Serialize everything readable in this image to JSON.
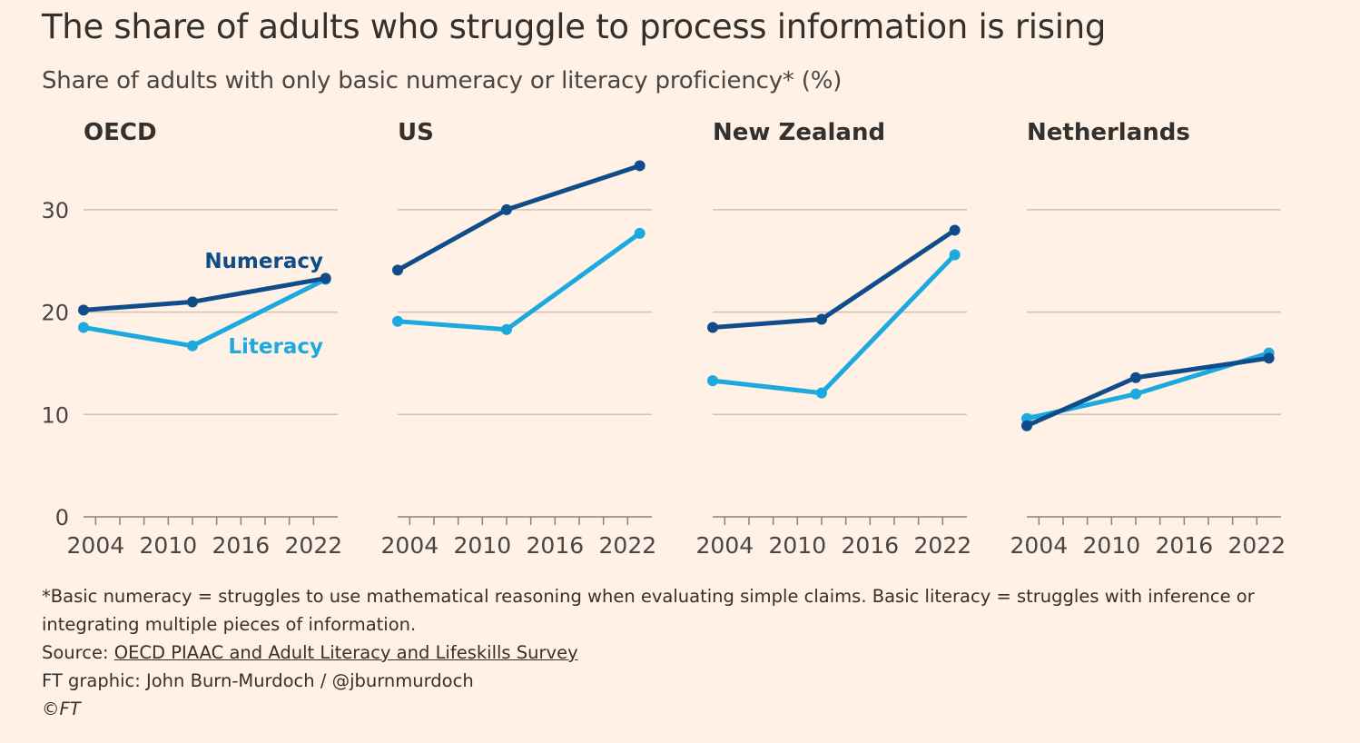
{
  "title": "The share of adults who struggle to process information is rising",
  "subtitle": "Share of adults with only basic numeracy or literacy proficiency* (%)",
  "colors": {
    "numeracy": "#0F4C8A",
    "literacy": "#1BA9DF",
    "grid": "#CFC2B5",
    "background": "#FFF1E5"
  },
  "chart_data": [
    {
      "type": "line",
      "title": "OECD",
      "x": [
        2003,
        2012,
        2023
      ],
      "series": [
        {
          "name": "Numeracy",
          "values": [
            20.2,
            21.0,
            23.3
          ]
        },
        {
          "name": "Literacy",
          "values": [
            18.5,
            16.7,
            23.2
          ]
        }
      ],
      "xlim": [
        2003,
        2024
      ],
      "ylim": [
        0,
        35
      ],
      "xticks": [
        2004,
        2010,
        2016,
        2022
      ],
      "yticks": [
        0,
        10,
        20,
        30
      ],
      "grid": true,
      "annotations": [
        "Numeracy",
        "Literacy"
      ]
    },
    {
      "type": "line",
      "title": "US",
      "x": [
        2003,
        2012,
        2023
      ],
      "series": [
        {
          "name": "Numeracy",
          "values": [
            24.1,
            30.0,
            34.3
          ]
        },
        {
          "name": "Literacy",
          "values": [
            19.1,
            18.3,
            27.7
          ]
        }
      ],
      "xlim": [
        2003,
        2024
      ],
      "ylim": [
        0,
        35
      ],
      "xticks": [
        2004,
        2010,
        2016,
        2022
      ],
      "yticks": [
        0,
        10,
        20,
        30
      ],
      "grid": true
    },
    {
      "type": "line",
      "title": "New Zealand",
      "x": [
        2003,
        2012,
        2023
      ],
      "series": [
        {
          "name": "Numeracy",
          "values": [
            18.5,
            19.3,
            28.0
          ]
        },
        {
          "name": "Literacy",
          "values": [
            13.3,
            12.1,
            25.6
          ]
        }
      ],
      "xlim": [
        2003,
        2024
      ],
      "ylim": [
        0,
        35
      ],
      "xticks": [
        2004,
        2010,
        2016,
        2022
      ],
      "yticks": [
        0,
        10,
        20,
        30
      ],
      "grid": true
    },
    {
      "type": "line",
      "title": "Netherlands",
      "x": [
        2003,
        2012,
        2023
      ],
      "series": [
        {
          "name": "Numeracy",
          "values": [
            8.9,
            13.6,
            15.5
          ]
        },
        {
          "name": "Literacy",
          "values": [
            9.6,
            12.0,
            16.0
          ]
        }
      ],
      "xlim": [
        2003,
        2024
      ],
      "ylim": [
        0,
        35
      ],
      "xticks": [
        2004,
        2010,
        2016,
        2022
      ],
      "yticks": [
        0,
        10,
        20,
        30
      ],
      "grid": true
    }
  ],
  "footer": {
    "note": "*Basic numeracy = struggles to use mathematical reasoning when evaluating simple claims. Basic literacy = struggles with inference or integrating multiple pieces of information.",
    "source_prefix": "Source: ",
    "source_link": "OECD PIAAC and Adult Literacy and Lifeskills Survey",
    "credit": "FT graphic: John Burn-Murdoch / @jburnmurdoch",
    "copyright": "©FT"
  }
}
